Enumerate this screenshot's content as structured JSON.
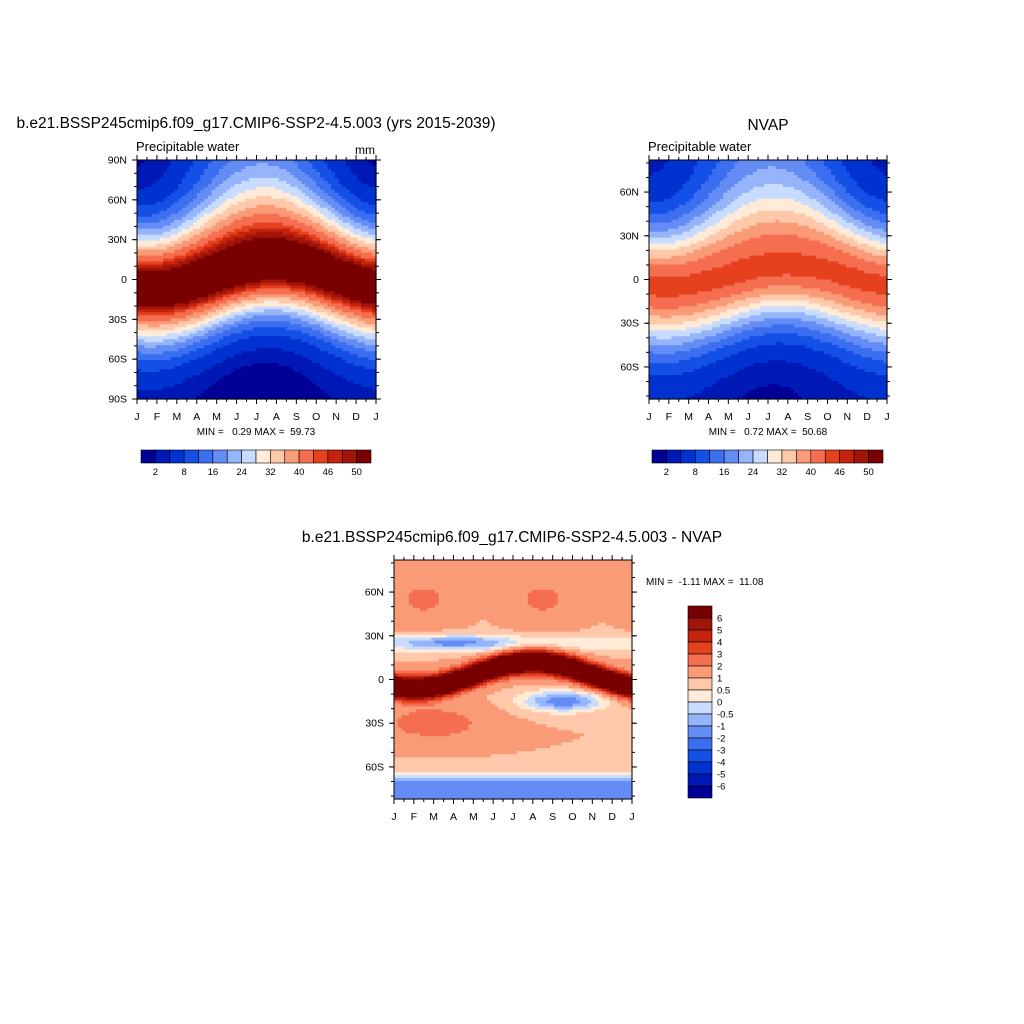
{
  "chart_data": [
    {
      "type": "heatmap",
      "title": "b.e21.BSSP245cmip6.f09_g17.CMIP6-SSP2-4.5.003 (yrs 2015-2039)",
      "subtitle": "Precipitable water",
      "units": "mm",
      "x_ticks": [
        "J",
        "F",
        "M",
        "A",
        "M",
        "J",
        "J",
        "A",
        "S",
        "O",
        "N",
        "D",
        "J"
      ],
      "y_ticks": [
        "90N",
        "60N",
        "30N",
        "0",
        "30S",
        "60S",
        "90S"
      ],
      "ylim": [
        -90,
        90
      ],
      "stats": {
        "min": "0.29",
        "max": "59.73",
        "text": "MIN =   0.29 MAX =  59.73"
      },
      "field": {
        "eq": 55,
        "pole_n_jan": 1.5,
        "pole_n_jul": 12,
        "pole_s_jan": 2,
        "pole_s_jul": 1,
        "width_n_jan": 30,
        "width_n_jul": 42,
        "width_s_jan": 30,
        "width_s_jul": 26,
        "itcz_amp": 9,
        "itcz_peak_month": 7
      }
    },
    {
      "type": "heatmap",
      "title": "NVAP",
      "subtitle": "Precipitable water",
      "x_ticks": [
        "J",
        "F",
        "M",
        "A",
        "M",
        "J",
        "J",
        "A",
        "S",
        "O",
        "N",
        "D",
        "J"
      ],
      "y_ticks": [
        "60N",
        "30N",
        "0",
        "30S",
        "60S"
      ],
      "ylim": [
        -82,
        82
      ],
      "stats": {
        "min": "0.72",
        "max": "50.68",
        "text": "MIN =   0.72 MAX =  50.68"
      },
      "field": {
        "eq": 45,
        "pole_n_jan": 3,
        "pole_n_jul": 14,
        "pole_s_jan": 3,
        "pole_s_jul": 1.5,
        "width_n_jan": 28,
        "width_n_jul": 38,
        "width_s_jan": 30,
        "width_s_jul": 27,
        "itcz_amp": 7,
        "itcz_peak_month": 7
      }
    },
    {
      "type": "heatmap",
      "title": "b.e21.BSSP245cmip6.f09_g17.CMIP6-SSP2-4.5.003 - NVAP",
      "x_ticks": [
        "J",
        "F",
        "M",
        "A",
        "M",
        "J",
        "J",
        "A",
        "S",
        "O",
        "N",
        "D",
        "J"
      ],
      "y_ticks": [
        "60N",
        "30N",
        "0",
        "30S",
        "60S"
      ],
      "ylim": [
        -82,
        82
      ],
      "stats": {
        "min": "-1.11",
        "max": "11.08",
        "text": "MIN =  -1.11 MAX =  11.08"
      }
    }
  ],
  "colorbars": {
    "abs": {
      "levels": [
        2,
        4,
        8,
        12,
        16,
        20,
        24,
        28,
        32,
        36,
        40,
        44,
        46,
        48,
        50
      ],
      "labels": [
        "2",
        "8",
        "16",
        "24",
        "32",
        "40",
        "46",
        "50"
      ],
      "colors": [
        "#000096",
        "#0019b4",
        "#0032d2",
        "#1450e6",
        "#3c6ef0",
        "#648cf5",
        "#96b4fa",
        "#c8dcff",
        "#ffebd7",
        "#ffc8aa",
        "#fa9b78",
        "#f56e50",
        "#e6411e",
        "#c3230f",
        "#a0140a",
        "#780000"
      ]
    },
    "diff": {
      "levels": [
        -6,
        -5,
        -4,
        -3,
        -2,
        -1,
        -0.5,
        0,
        0.5,
        1,
        2,
        3,
        4,
        5,
        6
      ],
      "labels": [
        "6",
        "5",
        "4",
        "3",
        "2",
        "1",
        "0.5",
        "0",
        "-0.5",
        "-1",
        "-2",
        "-3",
        "-4",
        "-5",
        "-6"
      ],
      "colors": [
        "#000096",
        "#0019b4",
        "#0032d2",
        "#1450e6",
        "#3c6ef0",
        "#648cf5",
        "#96b4fa",
        "#c8dcff",
        "#ffebd7",
        "#ffc8aa",
        "#fa9b78",
        "#f56e50",
        "#e6411e",
        "#c3230f",
        "#a0140a",
        "#780000"
      ]
    }
  }
}
